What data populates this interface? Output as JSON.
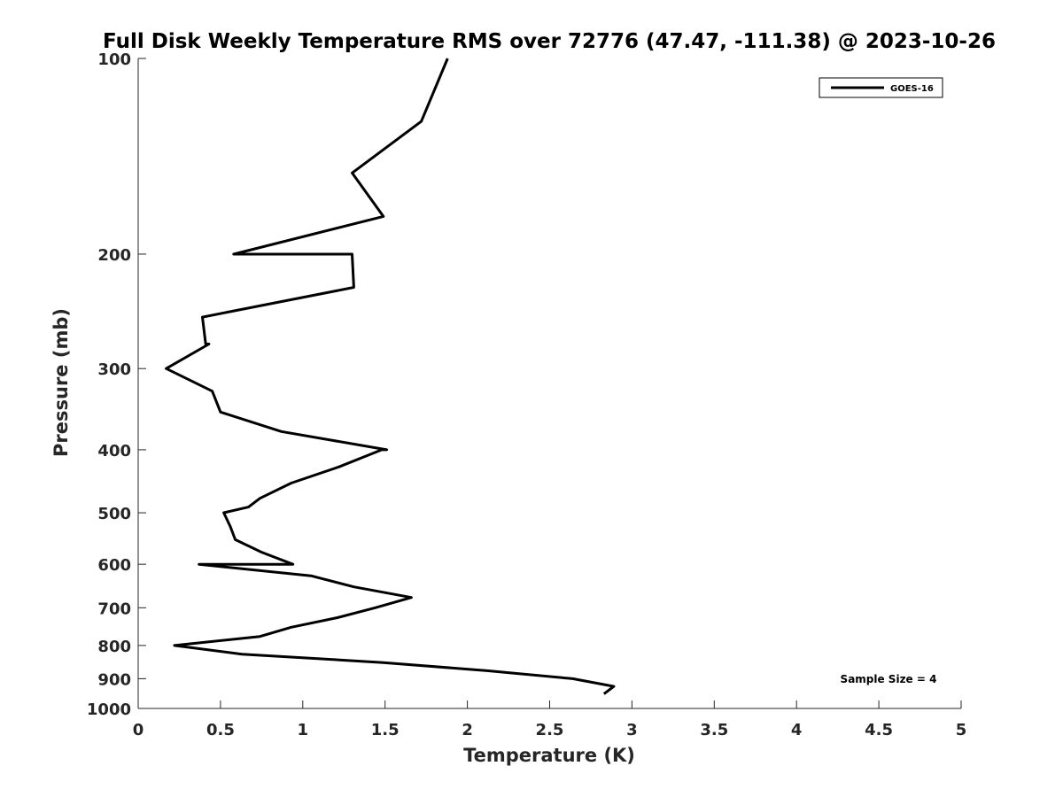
{
  "chart_data": {
    "type": "line",
    "title": "Full Disk Weekly Temperature RMS over 72776 (47.47, -111.38) @ 2023-10-26",
    "xlabel": "Temperature (K)",
    "ylabel": "Pressure (mb)",
    "xlim": [
      0,
      5
    ],
    "ylim": [
      1000,
      100
    ],
    "y_scale": "log",
    "y_reversed": true,
    "grid": false,
    "legend_position": "top-right",
    "x_ticks": [
      "0",
      "0.5",
      "1",
      "1.5",
      "2",
      "2.5",
      "3",
      "3.5",
      "4",
      "4.5",
      "5"
    ],
    "y_ticks": [
      "100",
      "200",
      "300",
      "400",
      "500",
      "600",
      "700",
      "800",
      "900",
      "1000"
    ],
    "series": [
      {
        "name": "GOES-16",
        "color": "#000000",
        "points": [
          {
            "x": 1.88,
            "y": 100
          },
          {
            "x": 1.72,
            "y": 125
          },
          {
            "x": 1.3,
            "y": 150
          },
          {
            "x": 1.49,
            "y": 175
          },
          {
            "x": 0.58,
            "y": 200
          },
          {
            "x": 1.3,
            "y": 200
          },
          {
            "x": 1.31,
            "y": 225
          },
          {
            "x": 0.39,
            "y": 250
          },
          {
            "x": 0.41,
            "y": 275
          },
          {
            "x": 0.43,
            "y": 275
          },
          {
            "x": 0.17,
            "y": 300
          },
          {
            "x": 0.45,
            "y": 325
          },
          {
            "x": 0.5,
            "y": 350
          },
          {
            "x": 0.87,
            "y": 375
          },
          {
            "x": 1.51,
            "y": 400
          },
          {
            "x": 1.48,
            "y": 400
          },
          {
            "x": 1.22,
            "y": 425
          },
          {
            "x": 0.93,
            "y": 450
          },
          {
            "x": 0.74,
            "y": 475
          },
          {
            "x": 0.67,
            "y": 490
          },
          {
            "x": 0.52,
            "y": 500
          },
          {
            "x": 0.56,
            "y": 525
          },
          {
            "x": 0.59,
            "y": 550
          },
          {
            "x": 0.75,
            "y": 575
          },
          {
            "x": 0.94,
            "y": 600
          },
          {
            "x": 0.37,
            "y": 600
          },
          {
            "x": 1.05,
            "y": 625
          },
          {
            "x": 1.31,
            "y": 650
          },
          {
            "x": 1.66,
            "y": 675
          },
          {
            "x": 1.44,
            "y": 700
          },
          {
            "x": 1.21,
            "y": 725
          },
          {
            "x": 0.93,
            "y": 750
          },
          {
            "x": 0.74,
            "y": 775
          },
          {
            "x": 0.22,
            "y": 800
          },
          {
            "x": 0.63,
            "y": 825
          },
          {
            "x": 1.49,
            "y": 850
          },
          {
            "x": 2.12,
            "y": 875
          },
          {
            "x": 2.64,
            "y": 900
          },
          {
            "x": 2.89,
            "y": 925
          },
          {
            "x": 2.83,
            "y": 950
          }
        ]
      }
    ],
    "annotations": [
      "Sample Size = 4"
    ]
  }
}
